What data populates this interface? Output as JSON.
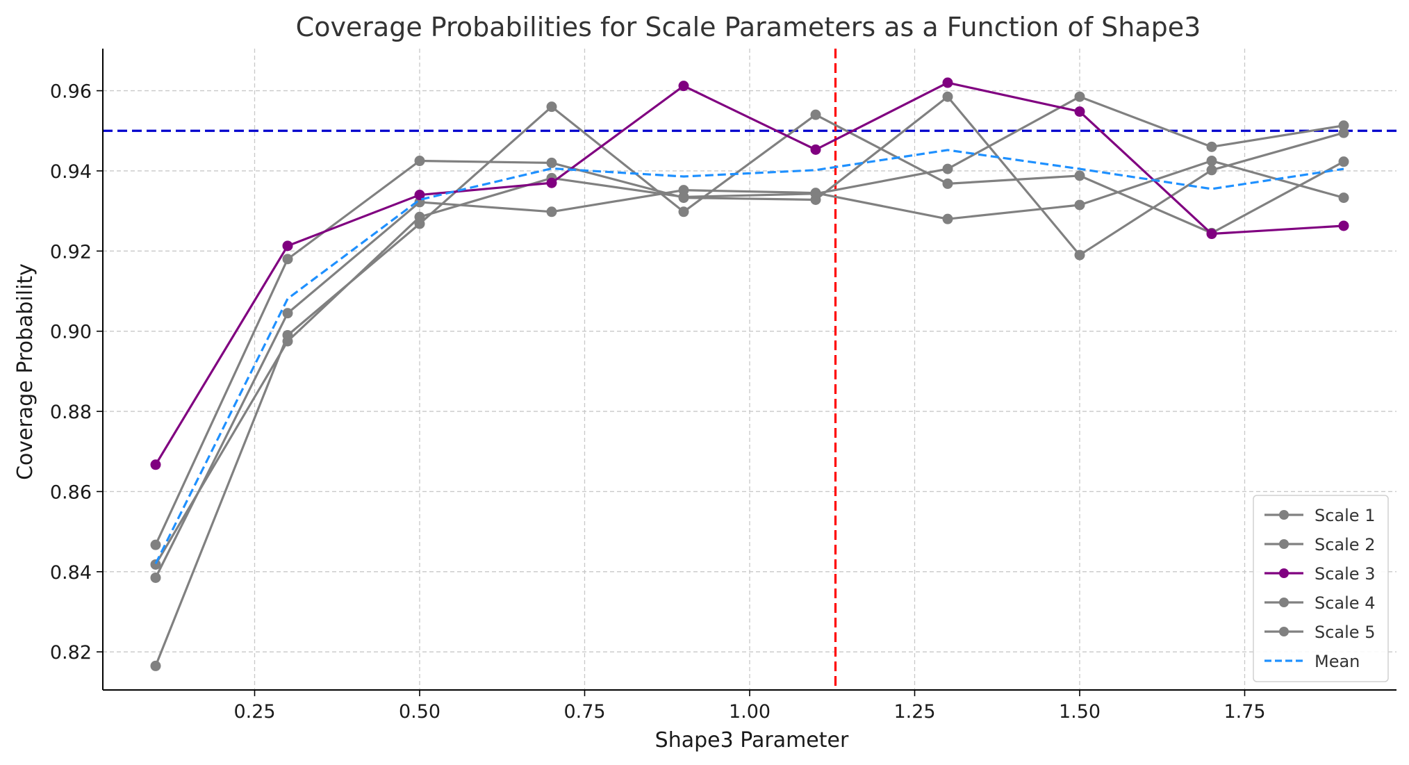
{
  "chart_data": {
    "type": "line",
    "title": "Coverage Probabilities for Scale Parameters as a Function of Shape3",
    "xlabel": "Shape3 Parameter",
    "ylabel": "Coverage Probability",
    "xlim": [
      0.02,
      1.98
    ],
    "ylim": [
      0.8105,
      0.9705
    ],
    "xticks": [
      0.25,
      0.5,
      0.75,
      1.0,
      1.25,
      1.5,
      1.75
    ],
    "xtick_labels": [
      "0.25",
      "0.50",
      "0.75",
      "1.00",
      "1.25",
      "1.50",
      "1.75"
    ],
    "yticks": [
      0.82,
      0.84,
      0.86,
      0.88,
      0.9,
      0.92,
      0.94,
      0.96
    ],
    "ytick_labels": [
      "0.82",
      "0.84",
      "0.86",
      "0.88",
      "0.90",
      "0.92",
      "0.94",
      "0.96"
    ],
    "grid": true,
    "legend_position": "lower-right",
    "x": [
      0.1,
      0.3,
      0.5,
      0.7,
      0.9,
      1.1,
      1.3,
      1.5,
      1.7,
      1.9
    ],
    "series": [
      {
        "name": "Scale 1",
        "color": "#808080",
        "style": "solid-marker",
        "values": [
          0.8467,
          0.918,
          0.9425,
          0.942,
          0.9333,
          0.9328,
          0.9585,
          0.919,
          0.9402,
          0.9495
        ]
      },
      {
        "name": "Scale 2",
        "color": "#808080",
        "style": "solid-marker",
        "values": [
          0.8385,
          0.9045,
          0.9322,
          0.9298,
          0.9352,
          0.9345,
          0.928,
          0.9315,
          0.9425,
          0.9333
        ]
      },
      {
        "name": "Scale 3",
        "color": "#800080",
        "style": "solid-marker",
        "values": [
          0.8667,
          0.9213,
          0.934,
          0.937,
          0.9612,
          0.9453,
          0.962,
          0.9548,
          0.9243,
          0.9263
        ]
      },
      {
        "name": "Scale 4",
        "color": "#808080",
        "style": "solid-marker",
        "values": [
          0.8165,
          0.899,
          0.9268,
          0.956,
          0.9298,
          0.954,
          0.9368,
          0.9388,
          0.9245,
          0.9423
        ]
      },
      {
        "name": "Scale 5",
        "color": "#808080",
        "style": "solid-marker",
        "values": [
          0.8418,
          0.8975,
          0.9285,
          0.9382,
          0.9335,
          0.9343,
          0.9405,
          0.9585,
          0.946,
          0.9513
        ]
      },
      {
        "name": "Mean",
        "color": "#1e90ff",
        "style": "dashed",
        "values": [
          0.842,
          0.9081,
          0.9328,
          0.9406,
          0.9386,
          0.9402,
          0.9452,
          0.9405,
          0.9355,
          0.9405
        ]
      }
    ],
    "reference_lines": [
      {
        "orientation": "horizontal",
        "value": 0.95,
        "color": "#0000cd",
        "style": "dashed"
      },
      {
        "orientation": "vertical",
        "value": 1.13,
        "color": "#ff0000",
        "style": "dashed"
      }
    ]
  }
}
